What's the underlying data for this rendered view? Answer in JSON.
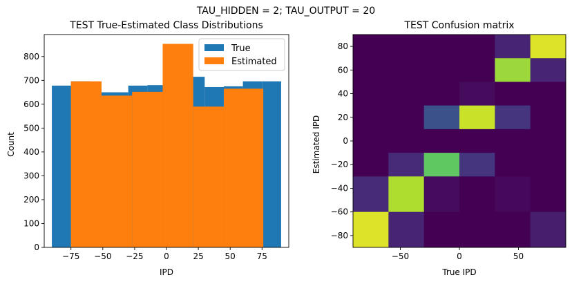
{
  "suptitle": "TAU_HIDDEN = 2; TAU_OUTPUT = 20",
  "colors": {
    "true": "#1f77b4",
    "estimated": "#ff7f0e",
    "viridis": [
      "#440154",
      "#482878",
      "#3e4989",
      "#31688e",
      "#26828e",
      "#1f9e89",
      "#35b779",
      "#6ece58",
      "#b5de2b",
      "#fde725"
    ]
  },
  "chart_data": [
    {
      "type": "bar",
      "title": "TEST True-Estimated Class Distributions",
      "xlabel": "IPD",
      "ylabel": "Count",
      "xlim": [
        -96,
        96
      ],
      "ylim": [
        0,
        892
      ],
      "xticks": [
        -75,
        -50,
        -25,
        0,
        25,
        50,
        75
      ],
      "xtick_labels": [
        "−75",
        "−50",
        "−25",
        "0",
        "25",
        "50",
        "75"
      ],
      "yticks": [
        0,
        100,
        200,
        300,
        400,
        500,
        600,
        700,
        800
      ],
      "ytick_labels": [
        "0",
        "100",
        "200",
        "300",
        "400",
        "500",
        "600",
        "700",
        "800"
      ],
      "legend": {
        "position": "top-right",
        "entries": [
          "True",
          "Estimated"
        ]
      },
      "series": [
        {
          "name": "True",
          "color_key": "true",
          "bins": [
            {
              "x0": -90,
              "x1": -75,
              "value": 678
            },
            {
              "x0": -75,
              "x1": -60,
              "value": 696
            },
            {
              "x0": -60,
              "x1": -45,
              "value": 650
            },
            {
              "x0": -45,
              "x1": -30,
              "value": 650
            },
            {
              "x0": -30,
              "x1": -15,
              "value": 678
            },
            {
              "x0": -15,
              "x1": 0,
              "value": 680
            },
            {
              "x0": 0,
              "x1": 15,
              "value": 680
            },
            {
              "x0": 15,
              "x1": 30,
              "value": 715
            },
            {
              "x0": 30,
              "x1": 45,
              "value": 672
            },
            {
              "x0": 45,
              "x1": 60,
              "value": 675
            },
            {
              "x0": 60,
              "x1": 75,
              "value": 696
            },
            {
              "x0": 75,
              "x1": 90,
              "value": 696
            }
          ]
        },
        {
          "name": "Estimated",
          "color_key": "estimated",
          "bins": [
            {
              "x0": -75,
              "x1": -51,
              "value": 696
            },
            {
              "x0": -51,
              "x1": -27,
              "value": 636
            },
            {
              "x0": -27,
              "x1": -3,
              "value": 652
            },
            {
              "x0": -3,
              "x1": 21,
              "value": 853
            },
            {
              "x0": 21,
              "x1": 45,
              "value": 590
            },
            {
              "x0": 45,
              "x1": 76,
              "value": 665
            }
          ]
        }
      ]
    },
    {
      "type": "heatmap",
      "title": "TEST Confusion matrix",
      "xlabel": "True IPD",
      "ylabel": "Estimated IPD",
      "xlim": [
        -90,
        90
      ],
      "ylim": [
        -90,
        90
      ],
      "xticks": [
        -50,
        0,
        50
      ],
      "xtick_labels": [
        "−50",
        "0",
        "50"
      ],
      "yticks": [
        -80,
        -60,
        -40,
        -20,
        0,
        20,
        40,
        60,
        80
      ],
      "ytick_labels": [
        "−80",
        "−60",
        "−40",
        "−20",
        "0",
        "20",
        "40",
        "60",
        "80"
      ],
      "x_edges": [
        -90,
        -60,
        -30,
        0,
        30,
        60,
        90
      ],
      "y_edges": [
        -90,
        -60,
        -30,
        -10,
        10,
        30,
        50,
        70,
        90
      ],
      "row_order": "top-to-bottom",
      "cells": [
        [
          0.0,
          0.0,
          0.0,
          0.0,
          0.1,
          0.95
        ],
        [
          0.0,
          0.0,
          0.0,
          0.0,
          0.85,
          0.1
        ],
        [
          0.0,
          0.0,
          0.0,
          0.03,
          0.0,
          0.0
        ],
        [
          0.0,
          0.0,
          0.25,
          0.92,
          0.15,
          0.0
        ],
        [
          0.0,
          0.0,
          0.0,
          0.0,
          0.0,
          0.0
        ],
        [
          0.0,
          0.12,
          0.75,
          0.15,
          0.0,
          0.0
        ],
        [
          0.12,
          0.88,
          0.03,
          0.0,
          0.02,
          0.0
        ],
        [
          0.95,
          0.1,
          0.0,
          0.0,
          0.0,
          0.08
        ]
      ]
    }
  ]
}
